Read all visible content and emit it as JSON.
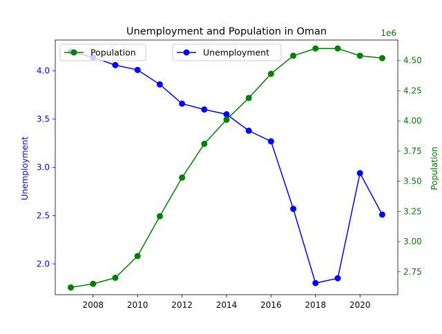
{
  "chart_data": {
    "type": "line",
    "title": "Unemployment and Population in Oman",
    "xlabel": "",
    "ylabel_left": "Unemployment",
    "ylabel_right": "Population",
    "right_axis_multiplier": "1e6",
    "x": [
      2007,
      2008,
      2009,
      2010,
      2011,
      2012,
      2013,
      2014,
      2015,
      2016,
      2017,
      2018,
      2019,
      2020,
      2021
    ],
    "x_ticks": [
      2008,
      2010,
      2012,
      2014,
      2016,
      2018,
      2020
    ],
    "xlim": [
      2006.3,
      2021.7
    ],
    "ylim_left": [
      1.68,
      4.32
    ],
    "ylim_right": [
      2.56,
      4.67
    ],
    "left_ticks": [
      2.0,
      2.5,
      3.0,
      3.5,
      4.0
    ],
    "right_ticks": [
      2.75,
      3.0,
      3.25,
      3.5,
      3.75,
      4.0,
      4.25,
      4.5
    ],
    "series": [
      {
        "name": "Unemployment",
        "axis": "left",
        "color": "#0000ff",
        "values": [
          4.2,
          4.14,
          4.06,
          4.01,
          3.86,
          3.66,
          3.6,
          3.55,
          3.38,
          3.27,
          2.57,
          1.8,
          1.85,
          2.94,
          2.51
        ]
      },
      {
        "name": "Population",
        "axis": "right",
        "color": "#008000",
        "values": [
          2.62,
          2.65,
          2.7,
          2.88,
          3.21,
          3.53,
          3.81,
          4.01,
          4.19,
          4.39,
          4.54,
          4.6,
          4.6,
          4.54,
          4.52
        ]
      }
    ],
    "legends": [
      {
        "label": "Population",
        "placement": "upper-left"
      },
      {
        "label": "Unemployment",
        "placement": "upper-center"
      }
    ],
    "grid": false
  }
}
